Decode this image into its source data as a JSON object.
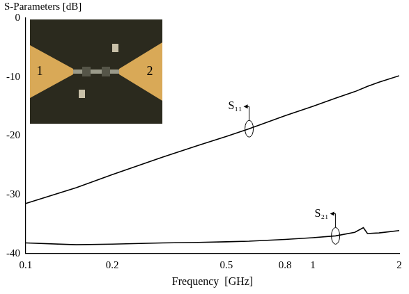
{
  "chart_data": {
    "type": "line",
    "y_label": "S-Parameters [dB]",
    "x_label": "Frequency  [GHz]",
    "log": "x",
    "grid": false,
    "xlim": [
      0.1,
      2
    ],
    "xticks": [
      0.1,
      0.2,
      0.5,
      0.8,
      1,
      2
    ],
    "ylim": [
      -40,
      0
    ],
    "yticks": [
      -40,
      -30,
      -20,
      -10,
      0
    ],
    "x": [
      0.1,
      0.15,
      0.2,
      0.3,
      0.4,
      0.5,
      0.6,
      0.8,
      1.0,
      1.2,
      1.4,
      1.5,
      1.55,
      1.7,
      2.0
    ],
    "series": [
      {
        "name": "S₁₁",
        "color": "#000000",
        "line_style": "solid",
        "values": [
          -31.5,
          -28.8,
          -26.6,
          -23.6,
          -21.6,
          -20.1,
          -18.8,
          -16.6,
          -15.0,
          -13.6,
          -12.5,
          -11.9,
          -11.6,
          -10.9,
          -9.8
        ]
      },
      {
        "name": "S₂₁",
        "color": "#000000",
        "line_style": "solid",
        "values": [
          -38.2,
          -38.5,
          -38.4,
          -38.2,
          -38.1,
          -38.0,
          -37.9,
          -37.6,
          -37.3,
          -37.0,
          -36.4,
          -35.6,
          -36.6,
          -36.5,
          -36.1
        ]
      }
    ],
    "annotations": [
      "1",
      "2"
    ]
  }
}
